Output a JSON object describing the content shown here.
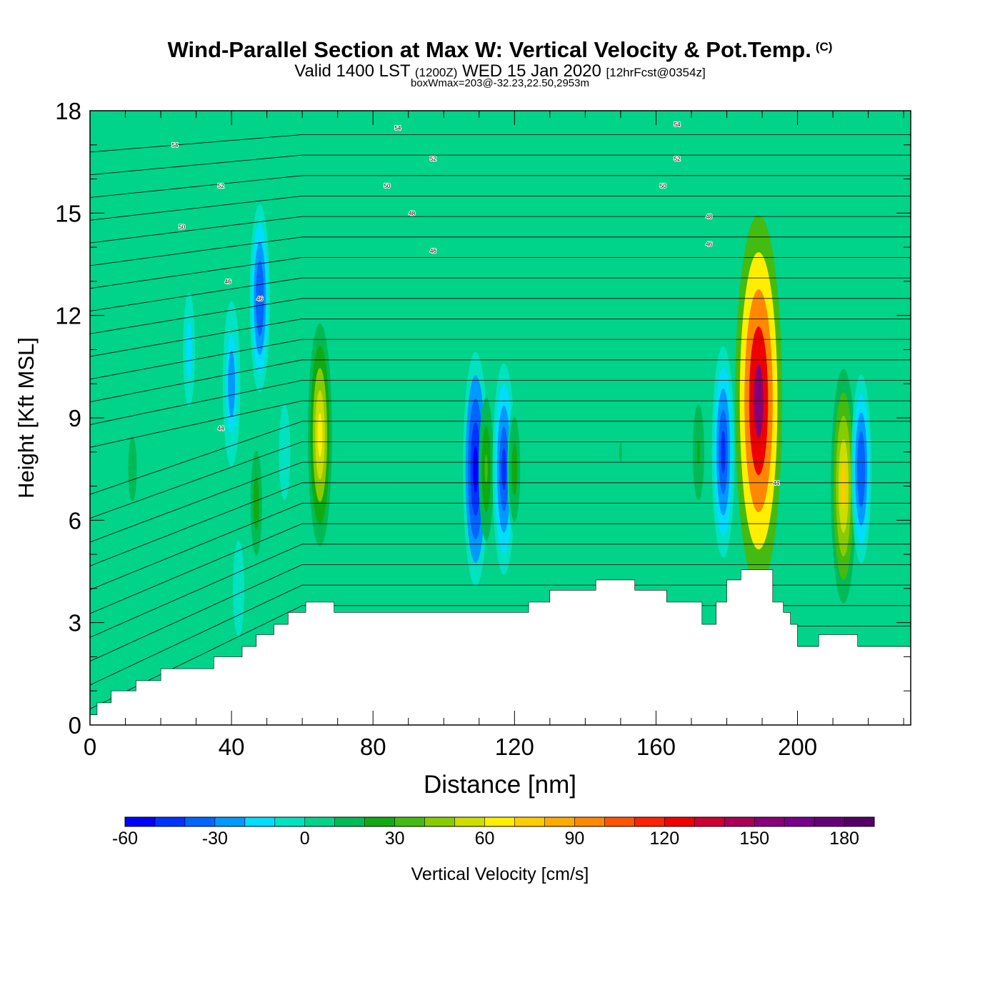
{
  "title": {
    "main": "Wind-Parallel Section at Max W: Vertical Velocity & Pot.Temp.",
    "copyright": "(C)",
    "valid_prefix": "Valid 1400 LST",
    "valid_utc": "(1200Z)",
    "valid_date": "WED 15 Jan 2020",
    "forecast": "[12hrFcst@0354z]",
    "subtitle": "boxWmax=203@-32.23,22.50,2953m"
  },
  "chart_data": {
    "type": "heatmap",
    "xlabel": "Distance [nm]",
    "ylabel": "Height [Kft MSL]",
    "xlim": [
      0,
      232
    ],
    "ylim": [
      0,
      18
    ],
    "x_ticks": [
      0,
      40,
      80,
      120,
      160,
      200
    ],
    "y_ticks": [
      0,
      3,
      6,
      9,
      12,
      15,
      18
    ],
    "x_tick_labels": [
      "0",
      "40",
      "80",
      "120",
      "160",
      "200"
    ],
    "y_tick_labels": [
      "0",
      "3",
      "6",
      "9",
      "12",
      "15",
      "18"
    ],
    "background_value": 5,
    "terrain": [
      [
        0,
        0.3
      ],
      [
        2,
        0.3
      ],
      [
        2,
        0.65
      ],
      [
        6,
        0.65
      ],
      [
        6,
        1
      ],
      [
        13,
        1
      ],
      [
        13,
        1.3
      ],
      [
        20,
        1.3
      ],
      [
        20,
        1.65
      ],
      [
        35,
        1.65
      ],
      [
        35,
        2
      ],
      [
        43,
        2
      ],
      [
        43,
        2.3
      ],
      [
        47,
        2.3
      ],
      [
        47,
        2.65
      ],
      [
        52,
        2.65
      ],
      [
        52,
        2.95
      ],
      [
        56,
        2.95
      ],
      [
        56,
        3.3
      ],
      [
        61,
        3.3
      ],
      [
        61,
        3.6
      ],
      [
        69,
        3.6
      ],
      [
        69,
        3.3
      ],
      [
        124,
        3.3
      ],
      [
        124,
        3.6
      ],
      [
        130,
        3.6
      ],
      [
        130,
        3.95
      ],
      [
        143,
        3.95
      ],
      [
        143,
        4.25
      ],
      [
        154,
        4.25
      ],
      [
        154,
        3.95
      ],
      [
        163,
        3.95
      ],
      [
        163,
        3.6
      ],
      [
        173,
        3.6
      ],
      [
        173,
        2.95
      ],
      [
        177,
        2.95
      ],
      [
        177,
        3.6
      ],
      [
        180,
        3.6
      ],
      [
        180,
        4.25
      ],
      [
        184,
        4.25
      ],
      [
        184,
        4.55
      ],
      [
        193,
        4.55
      ],
      [
        193,
        3.6
      ],
      [
        196,
        3.6
      ],
      [
        196,
        3.3
      ],
      [
        198,
        3.3
      ],
      [
        198,
        2.95
      ],
      [
        200,
        2.95
      ],
      [
        200,
        2.3
      ],
      [
        206,
        2.3
      ],
      [
        206,
        2.65
      ],
      [
        217,
        2.65
      ],
      [
        217,
        2.3
      ],
      [
        232,
        2.3
      ]
    ],
    "vertical_velocity_cells": [
      {
        "x": 5,
        "y": 2.5,
        "value": 5
      },
      {
        "x": 12,
        "y": 7.5,
        "value": 15
      },
      {
        "x": 40,
        "y": 10,
        "value": -30
      },
      {
        "x": 48,
        "y": 12.5,
        "value": -40
      },
      {
        "x": 28,
        "y": 11,
        "value": -20
      },
      {
        "x": 33,
        "y": 4.5,
        "value": 0
      },
      {
        "x": 42,
        "y": 4,
        "value": -10
      },
      {
        "x": 47,
        "y": 6.5,
        "value": 25
      },
      {
        "x": 55,
        "y": 8,
        "value": -10
      },
      {
        "x": 65,
        "y": 8.5,
        "value": 65
      },
      {
        "x": 88,
        "y": 8,
        "value": 0
      },
      {
        "x": 109,
        "y": 7.5,
        "value": -60
      },
      {
        "x": 112,
        "y": 7.5,
        "value": 30
      },
      {
        "x": 117,
        "y": 7.5,
        "value": -50
      },
      {
        "x": 120,
        "y": 7.5,
        "value": 25
      },
      {
        "x": 135,
        "y": 9,
        "value": 0
      },
      {
        "x": 150,
        "y": 8,
        "value": 10
      },
      {
        "x": 172,
        "y": 8,
        "value": 20
      },
      {
        "x": 179,
        "y": 8,
        "value": -50
      },
      {
        "x": 189,
        "y": 9.5,
        "value": 155
      },
      {
        "x": 213,
        "y": 7,
        "value": 70
      },
      {
        "x": 218,
        "y": 7.5,
        "value": -40
      }
    ],
    "theta_contour_labels": [
      {
        "x": 24,
        "y": 17,
        "label": "54"
      },
      {
        "x": 87,
        "y": 17.5,
        "label": "54"
      },
      {
        "x": 166,
        "y": 17.6,
        "label": "54"
      },
      {
        "x": 97,
        "y": 16.6,
        "label": "52"
      },
      {
        "x": 166,
        "y": 16.6,
        "label": "52"
      },
      {
        "x": 37,
        "y": 15.8,
        "label": "52"
      },
      {
        "x": 84,
        "y": 15.8,
        "label": "50"
      },
      {
        "x": 162,
        "y": 15.8,
        "label": "50"
      },
      {
        "x": 26,
        "y": 14.6,
        "label": "50"
      },
      {
        "x": 91,
        "y": 15,
        "label": "48"
      },
      {
        "x": 175,
        "y": 14.9,
        "label": "48"
      },
      {
        "x": 97,
        "y": 13.9,
        "label": "46"
      },
      {
        "x": 175,
        "y": 14.1,
        "label": "46"
      },
      {
        "x": 39,
        "y": 13,
        "label": "46"
      },
      {
        "x": 48,
        "y": 12.5,
        "label": "46"
      },
      {
        "x": 37,
        "y": 8.7,
        "label": "44"
      },
      {
        "x": 194,
        "y": 7.1,
        "label": "44"
      }
    ],
    "colorbar": {
      "label": "Vertical Velocity [cm/s]",
      "min": -60,
      "max": 190,
      "step": 10,
      "tick_values": [
        -60,
        -30,
        0,
        30,
        60,
        90,
        120,
        150,
        180
      ],
      "tick_labels": [
        "-60",
        "-30",
        "0",
        "30",
        "60",
        "90",
        "120",
        "150",
        "180"
      ],
      "colors": [
        "#0000ff",
        "#0033ff",
        "#0066ff",
        "#0099ff",
        "#00ddff",
        "#00e2c0",
        "#00d38a",
        "#00bb55",
        "#11aa11",
        "#44bb11",
        "#88cc00",
        "#ccdd00",
        "#ffee00",
        "#ffcc00",
        "#ffaa00",
        "#ff8800",
        "#ff5500",
        "#ff2200",
        "#ee0000",
        "#cc0033",
        "#aa0055",
        "#880077",
        "#770088",
        "#660077",
        "#550066"
      ]
    }
  }
}
